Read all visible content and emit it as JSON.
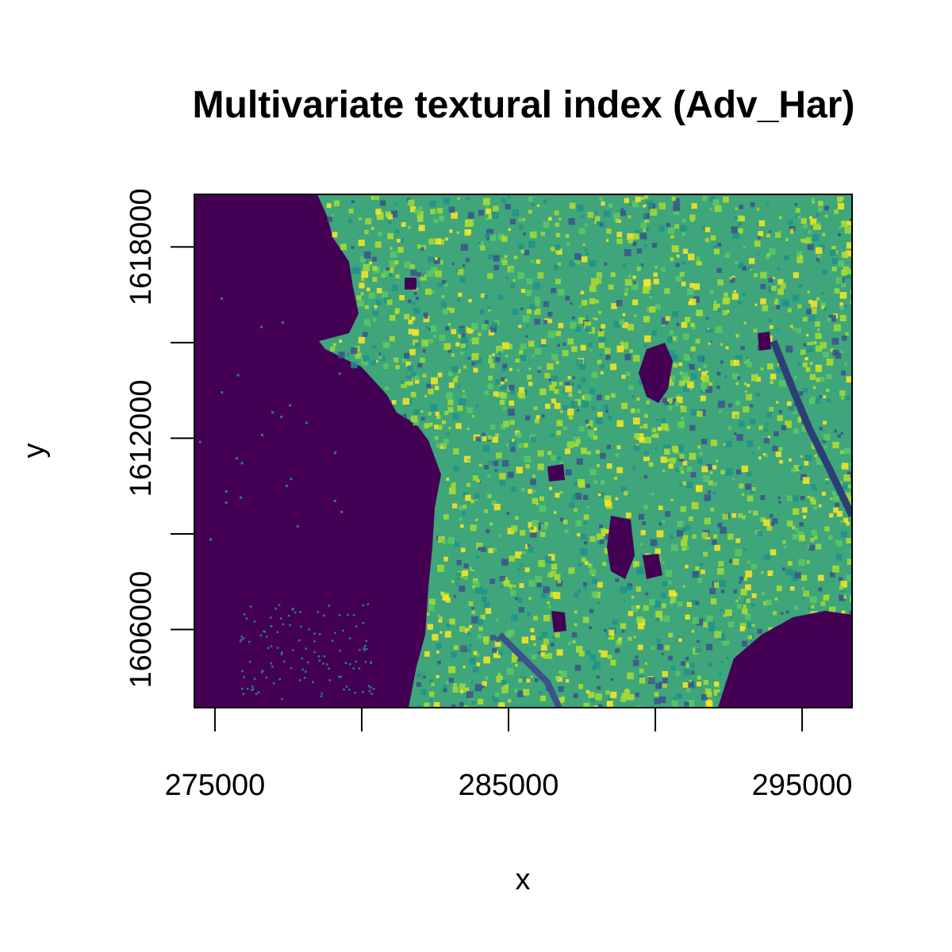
{
  "chart_data": {
    "type": "heatmap",
    "title": "Multivariate textural index (Adv_Har)",
    "xlabel": "x",
    "ylabel": "y",
    "xlim": [
      274300,
      296700
    ],
    "ylim": [
      1603550,
      1619650
    ],
    "x_ticks": [
      275000,
      280000,
      285000,
      290000,
      295000
    ],
    "x_tick_labels": [
      "275000",
      "",
      "285000",
      "",
      "295000"
    ],
    "y_ticks": [
      1606000,
      1609000,
      1612000,
      1615000,
      1618000
    ],
    "y_tick_labels": [
      "1606000",
      "",
      "1612000",
      "",
      "1618000"
    ],
    "colormap": [
      "#440154",
      "#3b528b",
      "#21908c",
      "#5dc863",
      "#fde725"
    ],
    "legend": "none",
    "grid": false
  }
}
